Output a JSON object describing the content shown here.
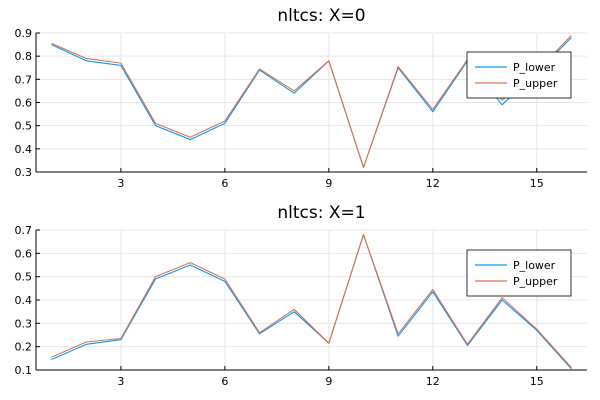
{
  "chart_data": [
    {
      "type": "line",
      "title": "nltcs: X=0",
      "xlabel": "",
      "ylabel": "",
      "xlim": [
        0.55,
        16.45
      ],
      "ylim": [
        0.3,
        0.9
      ],
      "xticks": [
        3,
        6,
        9,
        12,
        15
      ],
      "xtick_labels": [
        "3",
        "6",
        "9",
        "12",
        "15"
      ],
      "yticks": [
        0.3,
        0.4,
        0.5,
        0.6,
        0.7,
        0.8,
        0.9
      ],
      "ytick_labels": [
        "0.3",
        "0.4",
        "0.5",
        "0.6",
        "0.7",
        "0.8",
        "0.9"
      ],
      "legend_position": "top-right",
      "x": [
        1,
        2,
        3,
        4,
        5,
        6,
        7,
        8,
        9,
        10,
        11,
        12,
        13,
        14,
        15,
        16
      ],
      "series": [
        {
          "name": "P_lower",
          "color": "#009AFA",
          "values": [
            0.85,
            0.78,
            0.76,
            0.5,
            0.44,
            0.51,
            0.74,
            0.64,
            0.78,
            0.32,
            0.75,
            0.56,
            0.78,
            0.59,
            0.73,
            0.88
          ]
        },
        {
          "name": "P_upper",
          "color": "#E26F46",
          "values": [
            0.855,
            0.79,
            0.77,
            0.51,
            0.45,
            0.52,
            0.745,
            0.65,
            0.78,
            0.32,
            0.755,
            0.57,
            0.785,
            0.61,
            0.735,
            0.89
          ]
        }
      ]
    },
    {
      "type": "line",
      "title": "nltcs: X=1",
      "xlabel": "",
      "ylabel": "",
      "xlim": [
        0.55,
        16.45
      ],
      "ylim": [
        0.1,
        0.7
      ],
      "xticks": [
        3,
        6,
        9,
        12,
        15
      ],
      "xtick_labels": [
        "3",
        "6",
        "9",
        "12",
        "15"
      ],
      "yticks": [
        0.1,
        0.2,
        0.3,
        0.4,
        0.5,
        0.6,
        0.7
      ],
      "ytick_labels": [
        "0.1",
        "0.2",
        "0.3",
        "0.4",
        "0.5",
        "0.6",
        "0.7"
      ],
      "legend_position": "top-right",
      "x": [
        1,
        2,
        3,
        4,
        5,
        6,
        7,
        8,
        9,
        10,
        11,
        12,
        13,
        14,
        15,
        16
      ],
      "series": [
        {
          "name": "P_lower",
          "color": "#009AFA",
          "values": [
            0.145,
            0.21,
            0.23,
            0.49,
            0.55,
            0.48,
            0.255,
            0.35,
            0.215,
            0.68,
            0.245,
            0.435,
            0.205,
            0.4,
            0.27,
            0.105
          ]
        },
        {
          "name": "P_upper",
          "color": "#E26F46",
          "values": [
            0.155,
            0.22,
            0.235,
            0.5,
            0.56,
            0.49,
            0.26,
            0.36,
            0.215,
            0.68,
            0.255,
            0.445,
            0.21,
            0.41,
            0.275,
            0.11
          ]
        }
      ]
    }
  ]
}
